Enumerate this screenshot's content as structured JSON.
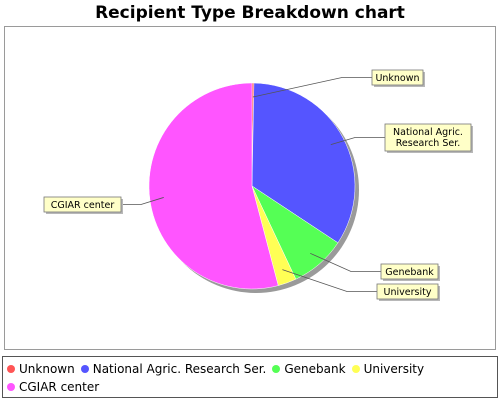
{
  "title": "Recipient Type Breakdown chart",
  "chart_data": {
    "type": "pie",
    "title": "Recipient Type Breakdown chart",
    "legend_position": "bottom",
    "slices": [
      {
        "label": "Unknown",
        "value": 0.3,
        "color": "#ff5555"
      },
      {
        "label": "National Agric. Research Ser.",
        "value": 34.0,
        "color": "#5555ff"
      },
      {
        "label": "Genebank",
        "value": 8.7,
        "color": "#55ff55"
      },
      {
        "label": "University",
        "value": 2.9,
        "color": "#ffff55"
      },
      {
        "label": "CGIAR center",
        "value": 54.1,
        "color": "#ff55ff"
      }
    ],
    "callouts": [
      "Unknown",
      "National Agric.\nResearch Ser.",
      "Genebank",
      "University",
      "CGIAR center"
    ]
  }
}
